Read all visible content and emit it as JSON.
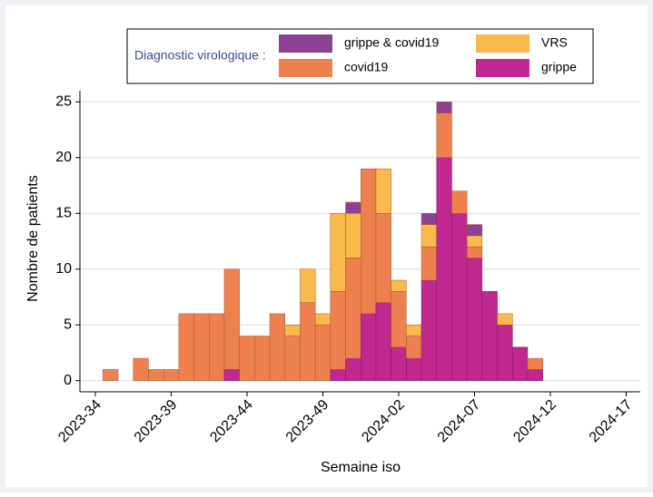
{
  "chart_data": {
    "type": "stacked_bar",
    "legend_title": "Diagnostic virologique :",
    "y_label": "Nombre de patients",
    "x_label": "Semaine iso",
    "categories": [
      "2023-34",
      null,
      null,
      null,
      null,
      "2023-39",
      null,
      null,
      null,
      null,
      "2023-44",
      null,
      null,
      null,
      null,
      "2023-49",
      null,
      null,
      null,
      null,
      "2024-02",
      null,
      null,
      null,
      null,
      "2024-07",
      null,
      null,
      null,
      null,
      "2024-12",
      null,
      null,
      null,
      null,
      "2024-17"
    ],
    "series": [
      {
        "name": "grippe",
        "color": "#c0288f",
        "values": [
          0,
          0,
          0,
          0,
          0,
          0,
          0,
          0,
          0,
          1,
          0,
          0,
          0,
          0,
          0,
          0,
          1,
          2,
          6,
          7,
          3,
          2,
          9,
          20,
          15,
          11,
          8,
          5,
          3,
          1,
          0,
          0,
          0,
          0,
          0,
          0
        ]
      },
      {
        "name": "covid19",
        "color": "#ee8050",
        "values": [
          0,
          1,
          0,
          2,
          1,
          1,
          6,
          6,
          6,
          9,
          4,
          4,
          6,
          4,
          7,
          5,
          7,
          9,
          13,
          8,
          5,
          2,
          3,
          4,
          2,
          1,
          0,
          0,
          0,
          1,
          0,
          0,
          0,
          0,
          0,
          0
        ]
      },
      {
        "name": "VRS",
        "color": "#f9b94b",
        "values": [
          0,
          0,
          0,
          0,
          0,
          0,
          0,
          0,
          0,
          0,
          0,
          0,
          0,
          1,
          3,
          1,
          7,
          4,
          0,
          4,
          1,
          1,
          2,
          0,
          0,
          1,
          0,
          1,
          0,
          0,
          0,
          0,
          0,
          0,
          0,
          0
        ]
      },
      {
        "name": "grippe & covid19",
        "color": "#8b4294",
        "values": [
          0,
          0,
          0,
          0,
          0,
          0,
          0,
          0,
          0,
          0,
          0,
          0,
          0,
          0,
          0,
          0,
          0,
          1,
          0,
          0,
          0,
          0,
          1,
          1,
          0,
          1,
          0,
          0,
          0,
          0,
          0,
          0,
          0,
          0,
          0,
          0
        ]
      }
    ],
    "ylim": [
      -1,
      26
    ],
    "yticks": [
      0,
      5,
      10,
      15,
      20,
      25
    ],
    "grid": true
  }
}
